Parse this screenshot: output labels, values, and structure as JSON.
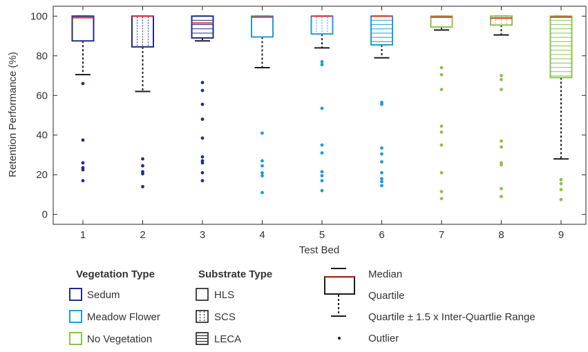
{
  "chart_data": {
    "type": "boxplot",
    "xlabel": "Test Bed",
    "ylabel": "Retention Performance (%)",
    "ylim": [
      -5,
      105
    ],
    "yticks": [
      0,
      20,
      40,
      60,
      80,
      100
    ],
    "categories": [
      "1",
      "2",
      "3",
      "4",
      "5",
      "6",
      "7",
      "8",
      "9"
    ],
    "boxes": [
      {
        "label": "1",
        "vegetation": "Sedum",
        "substrate": "HLS",
        "q1": 87.5,
        "median": 99.2,
        "q3": 100,
        "whisker_low": 70.5,
        "whisker_high": 100,
        "outliers": [
          66,
          37.5,
          26,
          23.5,
          22.5,
          17
        ]
      },
      {
        "label": "2",
        "vegetation": "Sedum",
        "substrate": "SCS",
        "q1": 84.5,
        "median": 100,
        "q3": 100,
        "whisker_low": 62,
        "whisker_high": 100,
        "outliers": [
          28,
          24.5,
          21.5,
          20.5,
          14
        ]
      },
      {
        "label": "3",
        "vegetation": "Sedum",
        "substrate": "LECA",
        "q1": 89,
        "median": 96.5,
        "q3": 100,
        "whisker_low": 87.5,
        "whisker_high": 100,
        "outliers": [
          66.5,
          62.5,
          55.5,
          48,
          38.5,
          29,
          27,
          26,
          21,
          17
        ]
      },
      {
        "label": "4",
        "vegetation": "Meadow Flower",
        "substrate": "HLS",
        "q1": 89.5,
        "median": 99.5,
        "q3": 100,
        "whisker_low": 74,
        "whisker_high": 100,
        "outliers": [
          41,
          27,
          24.5,
          21,
          19.5,
          11
        ]
      },
      {
        "label": "5",
        "vegetation": "Meadow Flower",
        "substrate": "SCS",
        "q1": 91,
        "median": 100,
        "q3": 100,
        "whisker_low": 84,
        "whisker_high": 100,
        "outliers": [
          77,
          75.5,
          53.5,
          35,
          31,
          21.5,
          19.5,
          17,
          12
        ]
      },
      {
        "label": "6",
        "vegetation": "Meadow Flower",
        "substrate": "LECA",
        "q1": 85.5,
        "median": 100,
        "q3": 100,
        "whisker_low": 79,
        "whisker_high": 100,
        "outliers": [
          56.5,
          55.5,
          33.5,
          30.5,
          26.5,
          21,
          18,
          16.5,
          14.5
        ]
      },
      {
        "label": "7",
        "vegetation": "No Vegetation",
        "substrate": "HLS",
        "q1": 94.5,
        "median": 99.5,
        "q3": 100,
        "whisker_low": 93,
        "whisker_high": 100,
        "outliers": [
          74,
          70.5,
          63,
          44.5,
          41.5,
          35,
          21,
          11.5,
          8
        ]
      },
      {
        "label": "8",
        "vegetation": "No Vegetation",
        "substrate": "SCS",
        "q1": 95.5,
        "median": 99,
        "q3": 100,
        "whisker_low": 90.5,
        "whisker_high": 100,
        "outliers": [
          70,
          68,
          63,
          37,
          34,
          26,
          25,
          13,
          9
        ]
      },
      {
        "label": "9",
        "vegetation": "No Vegetation",
        "substrate": "LECA",
        "q1": 69,
        "median": 99.5,
        "q3": 100,
        "whisker_low": 28,
        "whisker_high": 100,
        "outliers": [
          17.5,
          15.5,
          12.5,
          7.5
        ]
      }
    ],
    "colors": {
      "Sedum": "#1f2d86",
      "Meadow Flower": "#1f9bd7",
      "No Vegetation": "#8cc24a",
      "median": "#e0312b",
      "whisker": "#1a1a1a"
    },
    "legend": {
      "vegetation_title": "Vegetation Type",
      "vegetation_items": [
        "Sedum",
        "Meadow Flower",
        "No Vegetation"
      ],
      "substrate_title": "Substrate Type",
      "substrate_items": [
        "HLS",
        "SCS",
        "LECA"
      ],
      "key_items": [
        "Median",
        "Quartile",
        "Quartile ± 1.5 x Inter-Quartlie Range",
        "Outlier"
      ]
    }
  }
}
